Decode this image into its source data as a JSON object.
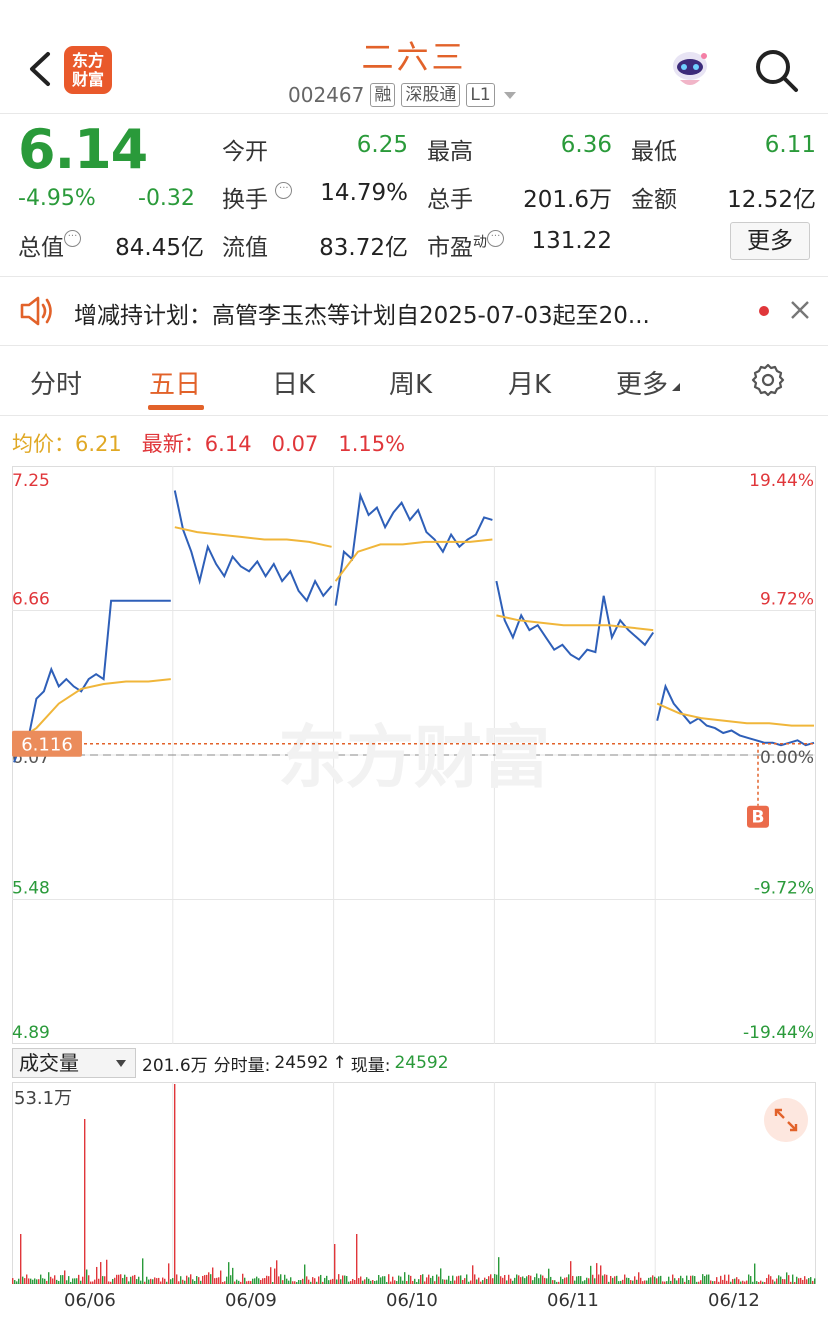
{
  "header": {
    "logo_line1": "东方",
    "logo_line2": "财富",
    "stock_name": "二六三",
    "stock_code": "002467",
    "tags": [
      "融",
      "深股通",
      "L1"
    ]
  },
  "quote": {
    "price": "6.14",
    "change_pct": "-4.95%",
    "change_val": "-0.32",
    "rows": [
      [
        {
          "label": "今开",
          "value": "6.25",
          "color": "green"
        },
        {
          "label": "最高",
          "value": "6.36",
          "color": "green"
        },
        {
          "label": "最低",
          "value": "6.11",
          "color": "green"
        }
      ],
      [
        {
          "label": "换手",
          "value": "14.79%",
          "color": "dark"
        },
        {
          "label": "总手",
          "value": "201.6万",
          "color": "dark"
        },
        {
          "label": "金额",
          "value": "12.52亿",
          "color": "dark"
        }
      ],
      [
        {
          "label": "总值",
          "value": "84.45亿",
          "color": "dark"
        },
        {
          "label": "流值",
          "value": "83.72亿",
          "color": "dark"
        },
        {
          "label": "市盈",
          "label_sup": "动",
          "value": "131.22",
          "color": "dark"
        }
      ]
    ],
    "more_label": "更多"
  },
  "announcement": {
    "text": "增减持计划：高管李玉杰等计划自2025-07-03起至20..."
  },
  "tabs": [
    "分时",
    "五日",
    "日K",
    "周K",
    "月K",
    "更多"
  ],
  "active_tab": 1,
  "summary": {
    "avg_label": "均价：",
    "avg_value": "6.21",
    "latest_label": "最新：",
    "latest_value": "6.14",
    "latest_change": "0.07",
    "latest_pct": "1.15%"
  },
  "chart_data": {
    "type": "line",
    "title": "",
    "y_ticks_left": [
      "7.25",
      "6.66",
      "6.07",
      "5.48",
      "4.89"
    ],
    "y_ticks_right": [
      "19.44%",
      "9.72%",
      "0.00%",
      "-9.72%",
      "-19.44%"
    ],
    "ylim": [
      4.89,
      7.25
    ],
    "prev_close": 6.07,
    "current_marker": "6.116",
    "marker_b": "B",
    "watermark": "东方财富",
    "days": [
      "06/06",
      "06/09",
      "06/10",
      "06/11",
      "06/12"
    ],
    "series": [
      {
        "color": "#2e5fb8",
        "points_per_day": [
          [
            6.04,
            6.12,
            6.15,
            6.3,
            6.33,
            6.42,
            6.35,
            6.38,
            6.35,
            6.33,
            6.38,
            6.4,
            6.38,
            6.7,
            6.7,
            6.7,
            6.7,
            6.7,
            6.7,
            6.7,
            6.7,
            6.7
          ],
          [
            7.15,
            6.99,
            6.9,
            6.78,
            6.92,
            6.85,
            6.8,
            6.88,
            6.84,
            6.82,
            6.86,
            6.8,
            6.85,
            6.78,
            6.82,
            6.74,
            6.7,
            6.78,
            6.72,
            6.76
          ],
          [
            6.68,
            6.9,
            6.87,
            7.13,
            7.05,
            7.08,
            7.0,
            7.06,
            7.1,
            7.03,
            7.07,
            6.98,
            6.95,
            6.9,
            6.97,
            6.92,
            6.95,
            6.97,
            7.04,
            7.03
          ],
          [
            6.78,
            6.62,
            6.55,
            6.64,
            6.58,
            6.6,
            6.55,
            6.5,
            6.52,
            6.48,
            6.46,
            6.5,
            6.49,
            6.72,
            6.55,
            6.62,
            6.58,
            6.55,
            6.52,
            6.57
          ],
          [
            6.21,
            6.35,
            6.28,
            6.24,
            6.2,
            6.22,
            6.19,
            6.18,
            6.16,
            6.17,
            6.15,
            6.14,
            6.13,
            6.12,
            6.12,
            6.11,
            6.12,
            6.13,
            6.11,
            6.12
          ]
        ]
      },
      {
        "color": "#f0b63a",
        "points_per_day": [
          [
            6.12,
            6.18,
            6.28,
            6.34,
            6.36,
            6.37,
            6.37,
            6.38
          ],
          [
            7.0,
            6.98,
            6.97,
            6.96,
            6.95,
            6.95,
            6.94,
            6.92
          ],
          [
            6.78,
            6.9,
            6.93,
            6.93,
            6.94,
            6.94,
            6.94,
            6.95
          ],
          [
            6.64,
            6.62,
            6.61,
            6.6,
            6.6,
            6.6,
            6.59,
            6.58
          ],
          [
            6.28,
            6.24,
            6.22,
            6.21,
            6.2,
            6.2,
            6.19,
            6.19
          ]
        ]
      }
    ],
    "volume": {
      "label": "成交量",
      "total": "201.6万",
      "interval_label": "分时量:",
      "interval_value": "24592",
      "arrow": "↑",
      "current_label": "现量:",
      "current_value": "24592",
      "max_label": "53.1万",
      "ymax": 53.1
    }
  }
}
